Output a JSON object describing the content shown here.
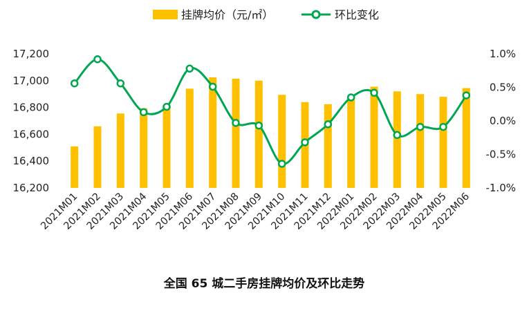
{
  "chart_data": {
    "type": "bar",
    "title": "全国 65 城二手房挂牌均价及环比走势",
    "categories": [
      "2021M01",
      "2021M02",
      "2021M03",
      "2021M04",
      "2021M05",
      "2021M06",
      "2021M07",
      "2021M08",
      "2021M09",
      "2021M10",
      "2021M11",
      "2021M12",
      "2022M01",
      "2022M02",
      "2022M03",
      "2022M04",
      "2022M05",
      "2022M06"
    ],
    "series": [
      {
        "name": "挂牌均价（元/㎡）",
        "type": "bar",
        "axis": "left",
        "color": "#FFC000",
        "values": [
          16510,
          16660,
          16755,
          16795,
          16815,
          16940,
          17025,
          17015,
          17000,
          16895,
          16840,
          16825,
          16885,
          16955,
          16920,
          16900,
          16880,
          16945
        ]
      },
      {
        "name": "环比变化",
        "type": "line",
        "axis": "right",
        "color": "#00A651",
        "values": [
          0.56,
          0.92,
          0.56,
          0.13,
          0.21,
          0.78,
          0.51,
          -0.03,
          -0.07,
          -0.64,
          -0.32,
          -0.05,
          0.35,
          0.42,
          -0.21,
          -0.09,
          -0.09,
          0.38
        ]
      }
    ],
    "y_left": {
      "min": 16200,
      "max": 17200,
      "ticks": [
        "16,200",
        "16,400",
        "16,600",
        "16,800",
        "17,000",
        "17,200"
      ]
    },
    "y_right": {
      "min": -1.0,
      "max": 1.0,
      "ticks": [
        "-1.0%",
        "-0.5%",
        "0.0%",
        "0.5%",
        "1.0%"
      ]
    },
    "grid": false,
    "legend_position": "top-center"
  }
}
